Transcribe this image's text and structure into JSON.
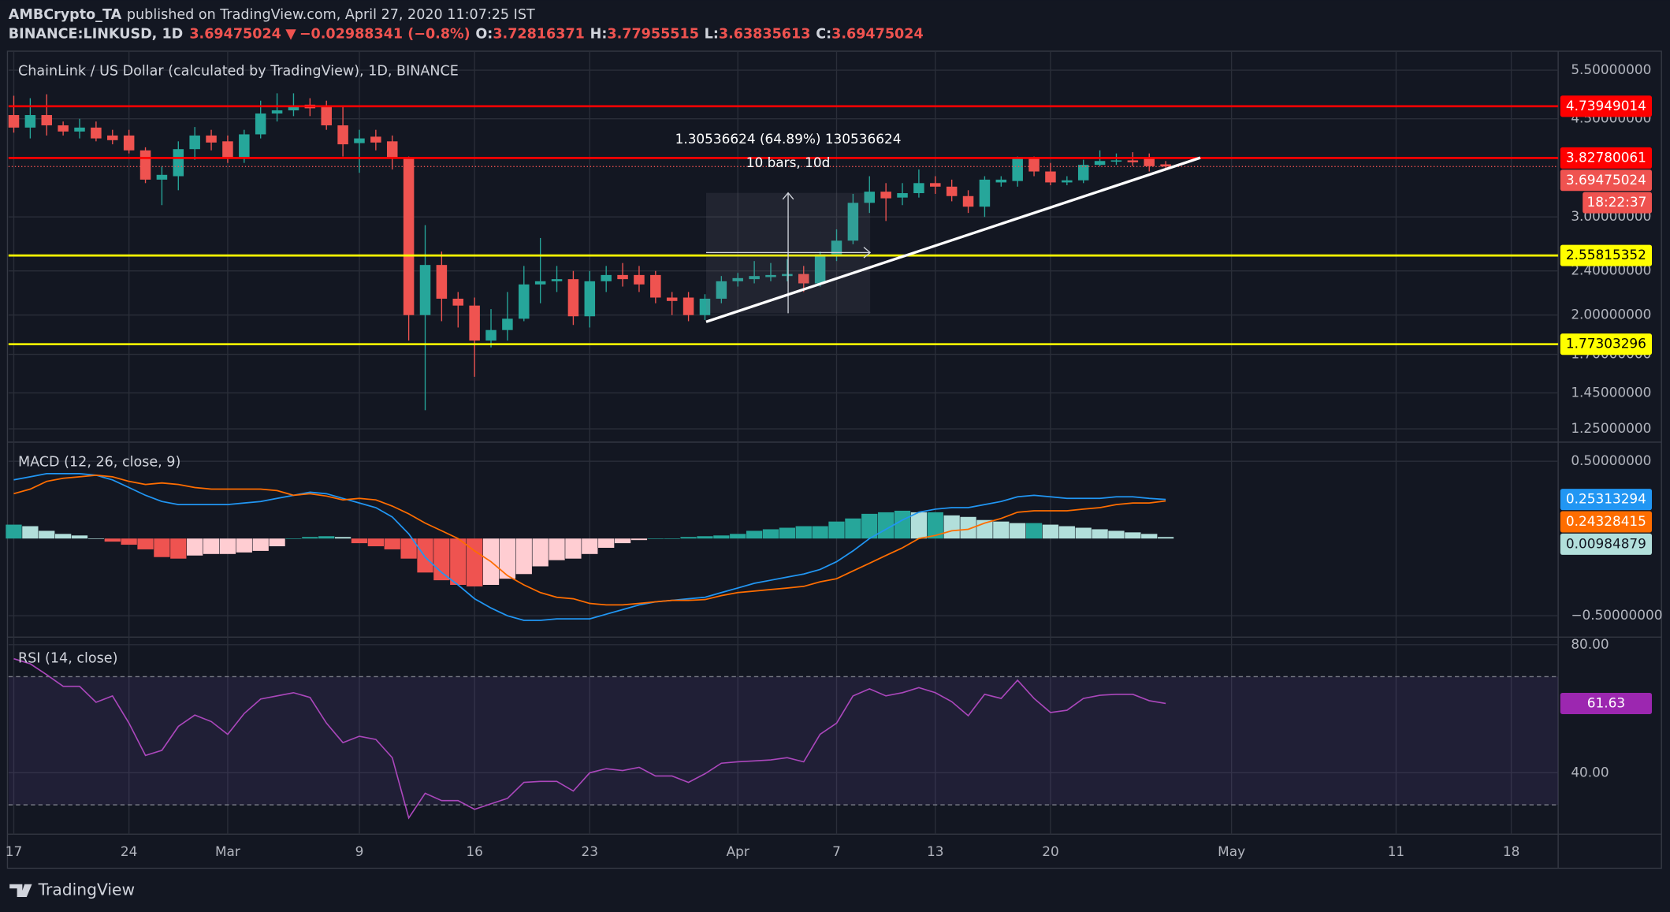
{
  "header": {
    "author": "AMBCrypto_TA",
    "published": "published on TradingView.com, April 27, 2020 11:07:25 IST",
    "symbol": "BINANCE:LINKUSD, 1D",
    "last": "3.69475024",
    "arrow": "▼",
    "change": "−0.02988341 (−0.8%)",
    "ohlc": [
      {
        "label": "O:",
        "value": "3.72816371"
      },
      {
        "label": "H:",
        "value": "3.77955515"
      },
      {
        "label": "L:",
        "value": "3.63835613"
      },
      {
        "label": "C:",
        "value": "3.69475024"
      }
    ]
  },
  "footer": {
    "brand": "TradingView"
  },
  "chart_data": [
    {
      "type": "candlestick",
      "title": "ChainLink / US Dollar (calculated by TradingView), 1D, BINANCE",
      "open": [
        4.57,
        4.34,
        4.57,
        4.38,
        4.27,
        4.34,
        4.2,
        4.2,
        3.95,
        3.5,
        3.55,
        3.97,
        4.2,
        4.1,
        3.82,
        4.22,
        4.6,
        4.66,
        4.77,
        4.73,
        4.38,
        4.07,
        4.18,
        4.1,
        3.82,
        2.0,
        2.46,
        2.14,
        2.08,
        1.8,
        1.88,
        1.97,
        2.27,
        2.3,
        2.32,
        1.99,
        2.3,
        2.36,
        2.36,
        2.36,
        2.15,
        2.15,
        2.0,
        2.14,
        2.3,
        2.32,
        2.34,
        2.35,
        2.37,
        2.28,
        2.57,
        2.72,
        3.18,
        3.33,
        3.25,
        3.31,
        3.45,
        3.4,
        3.27,
        3.13,
        3.46,
        3.48,
        3.82,
        3.62,
        3.46,
        3.49,
        3.72,
        3.77,
        3.79,
        3.83,
        3.72816371
      ],
      "high": [
        4.95,
        4.9,
        4.98,
        4.45,
        4.5,
        4.45,
        4.3,
        4.3,
        4.0,
        3.7,
        4.1,
        4.35,
        4.3,
        4.2,
        4.3,
        4.85,
        5.0,
        5.0,
        4.9,
        4.85,
        4.75,
        4.3,
        4.3,
        4.2,
        3.85,
        2.9,
        2.6,
        2.2,
        2.15,
        2.05,
        2.2,
        2.45,
        2.75,
        2.45,
        2.4,
        2.4,
        2.45,
        2.48,
        2.45,
        2.4,
        2.2,
        2.2,
        2.18,
        2.35,
        2.38,
        2.5,
        2.48,
        2.52,
        2.45,
        2.6,
        2.85,
        3.3,
        3.55,
        3.45,
        3.45,
        3.65,
        3.55,
        3.5,
        3.35,
        3.55,
        3.55,
        3.85,
        3.85,
        3.75,
        3.55,
        3.8,
        3.95,
        3.9,
        3.92,
        3.9,
        3.77955515
      ],
      "low": [
        4.25,
        4.15,
        4.2,
        4.2,
        4.15,
        4.1,
        4.05,
        3.9,
        3.45,
        3.15,
        3.35,
        3.8,
        3.95,
        3.75,
        3.75,
        4.15,
        4.45,
        4.55,
        4.55,
        4.3,
        3.85,
        3.6,
        3.95,
        3.65,
        1.8,
        1.35,
        1.95,
        1.9,
        1.55,
        1.75,
        1.8,
        1.95,
        2.1,
        2.2,
        1.92,
        1.9,
        2.2,
        2.25,
        2.2,
        2.1,
        2.0,
        1.95,
        1.96,
        2.1,
        2.25,
        2.28,
        2.3,
        2.3,
        2.2,
        2.25,
        2.5,
        2.68,
        3.05,
        2.95,
        3.15,
        3.25,
        3.3,
        3.2,
        3.05,
        3.0,
        3.4,
        3.4,
        3.55,
        3.42,
        3.42,
        3.45,
        3.7,
        3.72,
        3.7,
        3.62,
        3.63835613
      ],
      "close": [
        4.34,
        4.57,
        4.38,
        4.27,
        4.34,
        4.15,
        4.12,
        3.95,
        3.5,
        3.57,
        3.97,
        4.2,
        4.08,
        3.82,
        4.22,
        4.6,
        4.66,
        4.73,
        4.7,
        4.38,
        4.05,
        4.15,
        4.08,
        3.82,
        2.0,
        2.46,
        2.14,
        2.08,
        1.8,
        1.88,
        1.97,
        2.27,
        2.3,
        2.32,
        1.99,
        2.3,
        2.36,
        2.32,
        2.27,
        2.15,
        2.12,
        2.0,
        2.14,
        2.3,
        2.33,
        2.35,
        2.36,
        2.37,
        2.28,
        2.57,
        2.72,
        3.18,
        3.33,
        3.24,
        3.31,
        3.45,
        3.4,
        3.27,
        3.13,
        3.5,
        3.5,
        3.82,
        3.62,
        3.46,
        3.49,
        3.72,
        3.78,
        3.79,
        3.76,
        3.7,
        3.69475024
      ],
      "up_color": "#26a69a",
      "down_color": "#ef5350",
      "log_scale": true,
      "grid": true,
      "ylim": [
        1.183,
        5.95
      ],
      "yticks": [
        {
          "value": 5.5,
          "label": "5.50000000"
        },
        {
          "value": 4.5,
          "label": "4.50000000"
        },
        {
          "value": 3,
          "label": "3.00000000"
        },
        {
          "value": 2.4,
          "label": "2.40000000"
        },
        {
          "value": 2,
          "label": "2.00000000"
        },
        {
          "value": 1.7,
          "label": "1.70000000"
        },
        {
          "value": 1.45,
          "label": "1.45000000"
        },
        {
          "value": 1.25,
          "label": "1.25000000"
        }
      ],
      "xlim": [
        -0.32,
        93.85
      ],
      "xticks": [
        {
          "value": 0,
          "label": "17"
        },
        {
          "value": 7,
          "label": "24"
        },
        {
          "value": 13,
          "label": "Mar"
        },
        {
          "value": 21,
          "label": "9"
        },
        {
          "value": 28,
          "label": "16"
        },
        {
          "value": 35,
          "label": "23"
        },
        {
          "value": 44,
          "label": "Apr"
        },
        {
          "value": 50,
          "label": "7"
        },
        {
          "value": 56,
          "label": "13"
        },
        {
          "value": 63,
          "label": "20"
        },
        {
          "value": 74,
          "label": "May"
        },
        {
          "value": 84,
          "label": "11"
        },
        {
          "value": 91,
          "label": "18"
        }
      ],
      "levels": [
        {
          "value": 4.73949014,
          "color": "#ff0000",
          "text_color": "#ffffff"
        },
        {
          "value": 3.82780061,
          "color": "#ff0000",
          "text_color": "#ffffff"
        },
        {
          "value": 2.55815352,
          "color": "#ffff00",
          "text_color": "#000000"
        },
        {
          "value": 1.77303296,
          "color": "#ffff00",
          "text_color": "#000000"
        }
      ],
      "last_price_color": "#ef5350",
      "countdown": "18:22:37",
      "measure": {
        "text": "1.30536624 (64.89%) 130536624",
        "sub": "10 bars, 10d"
      }
    },
    {
      "type": "macd",
      "title": "MACD (12, 26, close, 9)",
      "series": [
        {
          "color": "#2196f3",
          "values": [
            0.38,
            0.4,
            0.42,
            0.42,
            0.42,
            0.41,
            0.38,
            0.33,
            0.28,
            0.24,
            0.22,
            0.22,
            0.22,
            0.22,
            0.23,
            0.24,
            0.26,
            0.28,
            0.3,
            0.29,
            0.26,
            0.23,
            0.2,
            0.14,
            0.03,
            -0.12,
            -0.22,
            -0.3,
            -0.39,
            -0.45,
            -0.5,
            -0.53,
            -0.53,
            -0.52,
            -0.52,
            -0.52,
            -0.49,
            -0.46,
            -0.43,
            -0.41,
            -0.4,
            -0.39,
            -0.38,
            -0.35,
            -0.32,
            -0.29,
            -0.27,
            -0.25,
            -0.23,
            -0.2,
            -0.15,
            -0.08,
            0.0,
            0.06,
            0.12,
            0.17,
            0.19,
            0.2,
            0.2,
            0.22,
            0.24,
            0.27,
            0.28,
            0.27,
            0.26,
            0.26,
            0.26,
            0.27,
            0.27,
            0.26,
            0.25313294
          ]
        },
        {
          "color": "#ff6d00",
          "values": [
            0.29,
            0.32,
            0.37,
            0.39,
            0.4,
            0.41,
            0.4,
            0.37,
            0.35,
            0.36,
            0.35,
            0.33,
            0.32,
            0.32,
            0.32,
            0.32,
            0.31,
            0.28,
            0.29,
            0.275,
            0.25,
            0.26,
            0.25,
            0.21,
            0.16,
            0.1,
            0.05,
            0.0,
            -0.08,
            -0.15,
            -0.24,
            -0.3,
            -0.35,
            -0.38,
            -0.39,
            -0.42,
            -0.43,
            -0.43,
            -0.42,
            -0.41,
            -0.4,
            -0.4,
            -0.395,
            -0.37,
            -0.35,
            -0.34,
            -0.33,
            -0.32,
            -0.31,
            -0.28,
            -0.26,
            -0.21,
            -0.16,
            -0.11,
            -0.06,
            0.0,
            0.02,
            0.05,
            0.06,
            0.1,
            0.13,
            0.17,
            0.18,
            0.18,
            0.18,
            0.19,
            0.2,
            0.22,
            0.23,
            0.23,
            0.24328415
          ]
        }
      ],
      "histogram": [
        0.09,
        0.08,
        0.05,
        0.03,
        0.02,
        0.0,
        -0.02,
        -0.04,
        -0.07,
        -0.12,
        -0.13,
        -0.11,
        -0.1,
        -0.1,
        -0.09,
        -0.08,
        -0.05,
        0.0,
        0.01,
        0.015,
        0.01,
        -0.03,
        -0.05,
        -0.07,
        -0.13,
        -0.22,
        -0.27,
        -0.3,
        -0.31,
        -0.3,
        -0.26,
        -0.23,
        -0.18,
        -0.14,
        -0.13,
        -0.1,
        -0.06,
        -0.03,
        -0.01,
        0.0,
        0.0,
        0.01,
        0.015,
        0.02,
        0.03,
        0.05,
        0.06,
        0.07,
        0.08,
        0.08,
        0.11,
        0.13,
        0.16,
        0.17,
        0.18,
        0.17,
        0.17,
        0.15,
        0.14,
        0.12,
        0.11,
        0.1,
        0.1,
        0.09,
        0.08,
        0.07,
        0.06,
        0.05,
        0.04,
        0.03,
        0.00984879
      ],
      "histogram_colors": {
        "up_rising": "#26a69a",
        "up_falling": "#b2dfdb",
        "down_falling": "#ef5350",
        "down_rising": "#ffcdd2"
      },
      "ylim": [
        -0.638,
        0.624
      ],
      "yticks": [
        {
          "value": 0.5,
          "label": "0.50000000"
        },
        {
          "value": -0.5,
          "label": "−0.50000000"
        }
      ]
    },
    {
      "type": "rsi",
      "title": "RSI (14, close)",
      "color": "#ab47bc",
      "label_color": "#9c27b0",
      "values": [
        75.6,
        74,
        70.6,
        67,
        67,
        62,
        64,
        55.5,
        45.4,
        47,
        54.5,
        58,
        56,
        52,
        58.5,
        63,
        64,
        65,
        63.5,
        55.5,
        49.4,
        51.4,
        50.4,
        44.7,
        25.9,
        33.6,
        31.3,
        31.3,
        28.6,
        30.3,
        32,
        37,
        37.3,
        37.3,
        34.3,
        40,
        41.3,
        40.7,
        41.7,
        39,
        39,
        37,
        39.7,
        43,
        43.4,
        43.7,
        44,
        44.7,
        43.4,
        52,
        55.5,
        64,
        66.2,
        64,
        65,
        66.6,
        65,
        62.2,
        57.8,
        64.5,
        63.2,
        68.9,
        63.2,
        58.8,
        59.5,
        63.2,
        64.2,
        64.5,
        64.5,
        62.5,
        61.63
      ],
      "bands": [
        70,
        30
      ],
      "ylim": [
        20.84,
        82.35
      ],
      "yticks": [
        {
          "value": 80,
          "label": "80.00"
        },
        {
          "value": 40,
          "label": "40.00"
        }
      ]
    }
  ]
}
